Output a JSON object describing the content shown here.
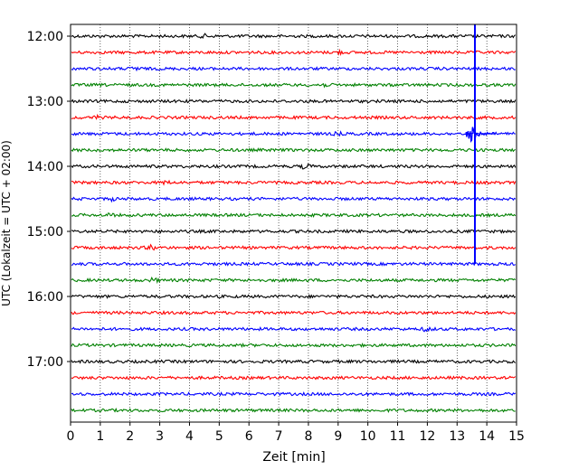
{
  "chart_data": {
    "type": "line",
    "title": "",
    "xlabel": "Zeit  [min]",
    "ylabel": "UTC (Lokalzeit = UTC + 02:00)",
    "xlim": [
      0,
      15
    ],
    "x_ticks": [
      "0",
      "1",
      "2",
      "3",
      "4",
      "5",
      "6",
      "7",
      "8",
      "9",
      "10",
      "11",
      "12",
      "13",
      "14",
      "15"
    ],
    "y_tick_labels": [
      "12:00",
      "13:00",
      "14:00",
      "15:00",
      "16:00",
      "17:00"
    ],
    "y_tick_rows": [
      0,
      4,
      8,
      12,
      16,
      20
    ],
    "row_start_times": [
      "12:00",
      "12:15",
      "12:30",
      "12:45",
      "13:00",
      "13:15",
      "13:30",
      "13:45",
      "14:00",
      "14:15",
      "14:30",
      "14:45",
      "15:00",
      "15:15",
      "15:30",
      "15:45",
      "16:00",
      "16:15",
      "16:30",
      "16:45",
      "17:00",
      "17:15",
      "17:30",
      "17:45"
    ],
    "row_color_cycle": [
      "#000000",
      "#ff0000",
      "#0000ff",
      "#008000"
    ],
    "grid": "vertical dotted",
    "events": [
      {
        "row": 0,
        "time_min": 4.5,
        "amp": 1.3
      },
      {
        "row": 1,
        "time_min": 9.0,
        "amp": 1.6
      },
      {
        "row": 2,
        "time_min": 2.2,
        "amp": 2.0
      },
      {
        "row": 3,
        "time_min": 8.5,
        "amp": 1.4
      },
      {
        "row": 5,
        "time_min": 0.9,
        "amp": 1.4
      },
      {
        "row": 6,
        "time_min": 9.0,
        "amp": 1.3
      },
      {
        "row": 8,
        "time_min": 7.9,
        "amp": 2.4
      },
      {
        "row": 9,
        "time_min": 3.2,
        "amp": 1.4
      },
      {
        "row": 10,
        "time_min": 1.4,
        "amp": 1.3
      },
      {
        "row": 11,
        "time_min": 1.3,
        "amp": 1.4
      },
      {
        "row": 13,
        "time_min": 2.7,
        "amp": 2.4
      },
      {
        "row": 15,
        "time_min": 2.8,
        "amp": 2.0
      },
      {
        "row": 18,
        "time_min": 12.0,
        "amp": 2.6
      }
    ],
    "spike": {
      "time_min": 13.6,
      "top_row": -0.8,
      "bottom_row": 14.0
    },
    "quake": {
      "row": 6,
      "start_min": 13.3,
      "end_min": 14.3,
      "peak_amp": 10
    }
  }
}
